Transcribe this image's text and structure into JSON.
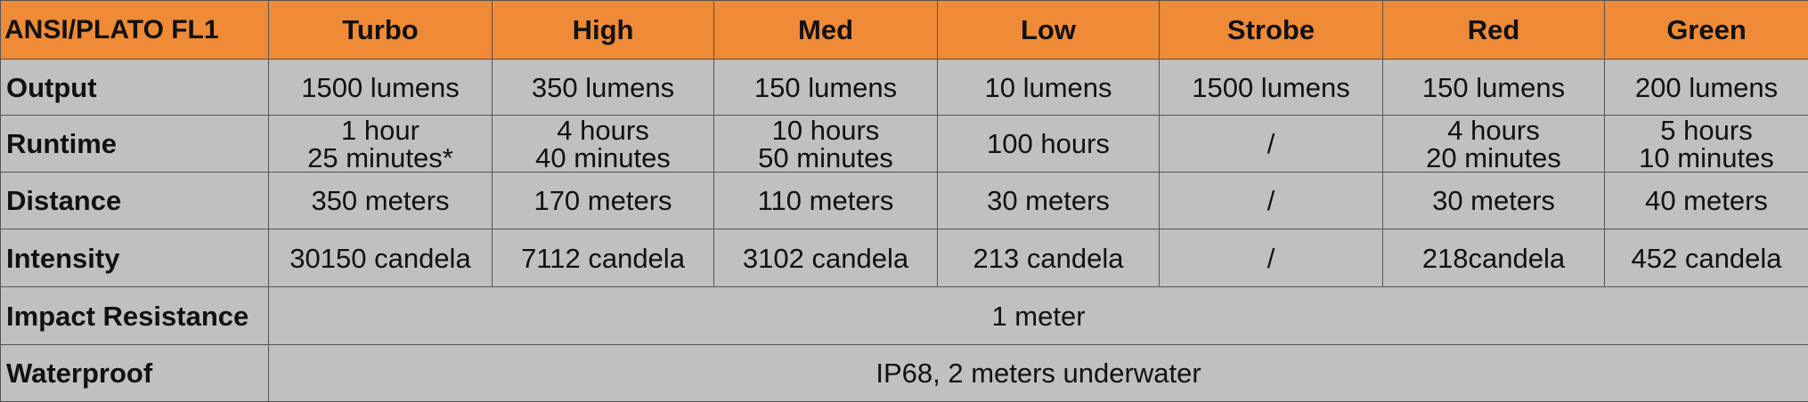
{
  "header": {
    "corner": "ANSI/PLATO  FL1",
    "modes": [
      "Turbo",
      "High",
      "Med",
      "Low",
      "Strobe",
      "Red",
      "Green"
    ]
  },
  "rows": {
    "output": {
      "label": "Output",
      "values": [
        "1500 lumens",
        "350 lumens",
        "150 lumens",
        "10 lumens",
        "1500 lumens",
        "150 lumens",
        "200 lumens"
      ]
    },
    "runtime": {
      "label": "Runtime",
      "values": [
        [
          "1 hour",
          "25 minutes*"
        ],
        [
          "4 hours",
          "40 minutes"
        ],
        [
          "10 hours",
          "50 minutes"
        ],
        [
          "100 hours"
        ],
        [
          "/"
        ],
        [
          "4 hours",
          "20 minutes"
        ],
        [
          "5 hours",
          "10 minutes"
        ]
      ]
    },
    "distance": {
      "label": "Distance",
      "values": [
        "350 meters",
        "170 meters",
        "110 meters",
        "30 meters",
        "/",
        "30 meters",
        "40 meters"
      ]
    },
    "intensity": {
      "label": "Intensity",
      "values": [
        "30150 candela",
        "7112 candela",
        "3102 candela",
        "213 candela",
        "/",
        "218candela",
        "452 candela"
      ]
    },
    "impact": {
      "label": "Impact Resistance",
      "value": "1 meter"
    },
    "waterproof": {
      "label": "Waterproof",
      "value": "IP68, 2 meters underwater"
    }
  },
  "colors": {
    "header_bg": "#ef8a36",
    "body_bg": "#c0c0c0",
    "border": "#555555"
  }
}
